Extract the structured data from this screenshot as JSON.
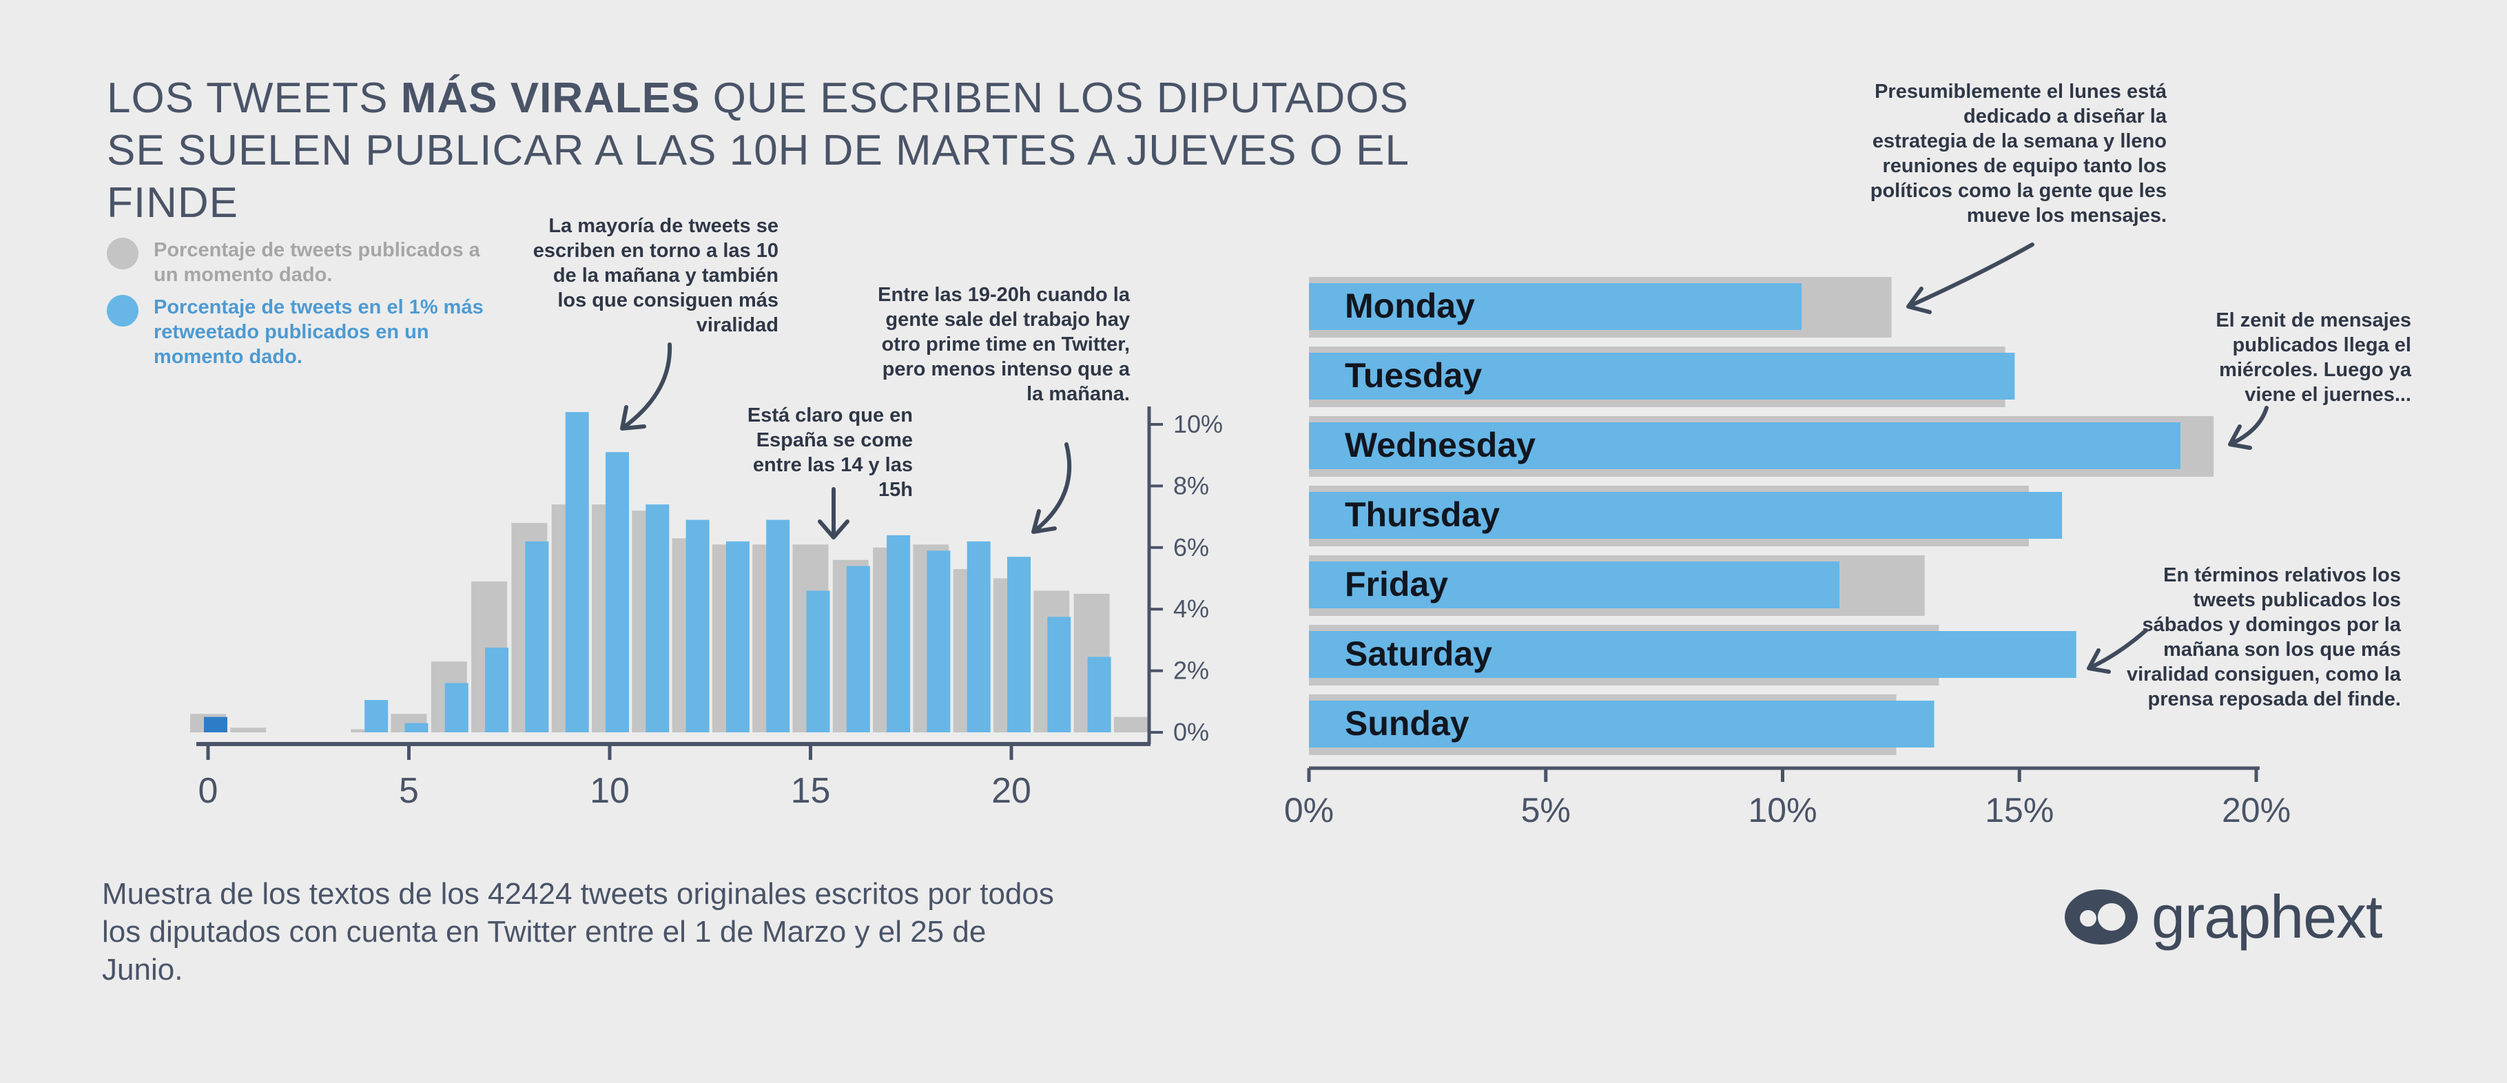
{
  "title": {
    "part1": "Los tweets ",
    "bold": "más virales",
    "part2": " que escriben los diputados se suelen publicar a las 10h de martes a jueves o el finde"
  },
  "legend": [
    {
      "label": "Porcentaje de tweets publicados a un momento dado.",
      "color": "#c4c4c4",
      "text_color": "#a6a6a6"
    },
    {
      "label": "Porcentaje de tweets en el 1% más retweetado publicados en un momento dado.",
      "color": "#67b6e6",
      "text_color": "#4d9ad2"
    }
  ],
  "annotations": {
    "morning": "La mayoría de tweets se escriben en torno a las 10 de la mañana y también los que consiguen más viralidad",
    "lunch": "Está claro que en España se come entre las 14 y las 15h",
    "evening": "Entre las 19-20h cuando la gente sale del trabajo hay otro prime time en Twitter, pero menos intenso que a la mañana.",
    "monday": "Presumiblemente el lunes está dedicado a diseñar la estrategia de la semana y lleno reuniones de equipo tanto los políticos como la gente que les mueve los mensajes.",
    "wednesday": "El zenit de mensajes publicados llega el miércoles. Luego ya viene el juernes...",
    "weekend": "En términos relativos los tweets publicados los sábados y domingos por la mañana son los que más viralidad consiguen, como la prensa reposada del finde."
  },
  "footnote": "Muestra de los textos de los 42424 tweets originales escritos por todos los  diputados con cuenta en Twitter entre el 1 de Marzo y el 25 de Junio.",
  "logo": {
    "text": "graphext"
  },
  "colors": {
    "all": "#c4c4c4",
    "viral": "#67b6e6",
    "axis": "#4a5468"
  },
  "chart_data": [
    {
      "type": "bar",
      "xlabel": "",
      "ylabel": "",
      "x": [
        0,
        1,
        2,
        3,
        4,
        5,
        6,
        7,
        8,
        9,
        10,
        11,
        12,
        13,
        14,
        15,
        16,
        17,
        18,
        19,
        20,
        21,
        22,
        23
      ],
      "xticks": [
        0,
        5,
        10,
        15,
        20
      ],
      "yticks": [
        0,
        2,
        4,
        6,
        8,
        10
      ],
      "ytick_labels": [
        "0%",
        "2%",
        "4%",
        "6%",
        "8%",
        "10%"
      ],
      "ylim": [
        0,
        10.5
      ],
      "y_axis_side": "right",
      "grid": false,
      "series": [
        {
          "name": "Porcentaje de tweets publicados a un momento dado.",
          "values": [
            0.6,
            0.15,
            0,
            0,
            0.1,
            0.6,
            2.3,
            4.9,
            6.8,
            7.4,
            7.4,
            7.2,
            6.3,
            6.1,
            6.1,
            6.1,
            5.6,
            6.0,
            6.1,
            5.3,
            5.0,
            4.6,
            4.5,
            0.5
          ]
        },
        {
          "name": "Porcentaje de tweets en el 1% más retweetado publicados en un momento dado.",
          "values": [
            0.5,
            0,
            0,
            0,
            1.05,
            0.3,
            1.6,
            2.75,
            6.2,
            10.4,
            9.1,
            7.4,
            6.9,
            6.2,
            6.9,
            4.6,
            5.4,
            6.4,
            5.9,
            6.2,
            5.7,
            3.75,
            2.45,
            0
          ]
        }
      ]
    },
    {
      "type": "bar",
      "orientation": "horizontal",
      "categories": [
        "Monday",
        "Tuesday",
        "Wednesday",
        "Thursday",
        "Friday",
        "Saturday",
        "Sunday"
      ],
      "xticks": [
        0,
        5,
        10,
        15,
        20
      ],
      "xtick_labels": [
        "0%",
        "5%",
        "10%",
        "15%",
        "20%"
      ],
      "xlim": [
        0,
        20
      ],
      "grid": false,
      "series": [
        {
          "name": "Porcentaje de tweets publicados a un momento dado.",
          "values": [
            12.3,
            14.7,
            19.1,
            15.2,
            13.0,
            13.3,
            12.4
          ]
        },
        {
          "name": "Porcentaje de tweets en el 1% más retweetado publicados en un momento dado.",
          "values": [
            10.4,
            14.9,
            18.4,
            15.9,
            11.2,
            16.2,
            13.2
          ]
        }
      ]
    }
  ]
}
